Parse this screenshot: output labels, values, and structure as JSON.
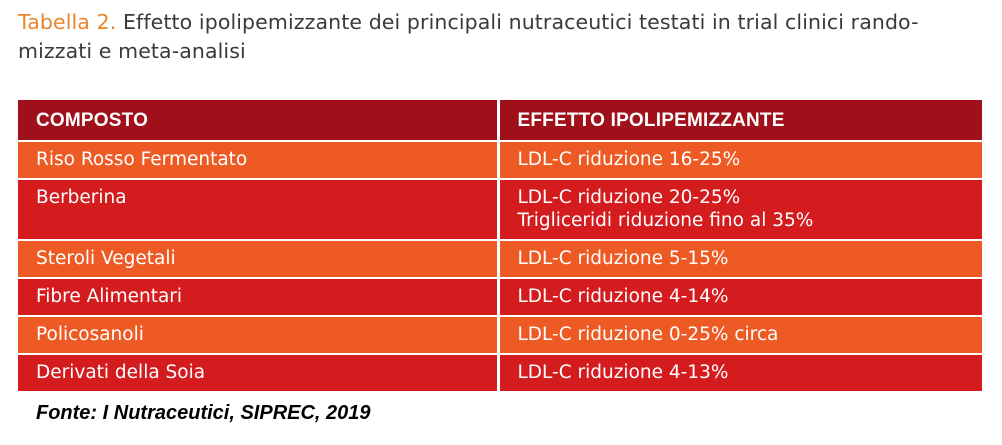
{
  "caption": {
    "label": "Tabella 2.",
    "text": "Effetto ipolipemizzante dei principali nutraceutici testati in trial clinici rando-mizzati e meta-analisi"
  },
  "table": {
    "headers": [
      "COMPOSTO",
      "EFFETTO IPOLIPEMIZZANTE"
    ],
    "rows": [
      {
        "compound": "Riso Rosso Fermentato",
        "effect_line1": "LDL-C riduzione 16-25%",
        "effect_line2": ""
      },
      {
        "compound": "Berberina",
        "effect_line1": "LDL-C riduzione 20-25%",
        "effect_line2": "Trigliceridi riduzione fino al 35%"
      },
      {
        "compound": "Steroli Vegetali",
        "effect_line1": "LDL-C riduzione 5-15%",
        "effect_line2": ""
      },
      {
        "compound": "Fibre Alimentari",
        "effect_line1": "LDL-C riduzione 4-14%",
        "effect_line2": ""
      },
      {
        "compound": "Policosanoli",
        "effect_line1": "LDL-C riduzione 0-25% circa",
        "effect_line2": ""
      },
      {
        "compound": "Derivati della Soia",
        "effect_line1": "LDL-C riduzione 4-13%",
        "effect_line2": ""
      }
    ]
  },
  "source": "Fonte: I Nutraceutici, SIPREC, 2019",
  "colors": {
    "caption_label": "#e8862a",
    "header_bg": "#a0101a",
    "row_orange": "#ee5a24",
    "row_red": "#d41c1f"
  }
}
